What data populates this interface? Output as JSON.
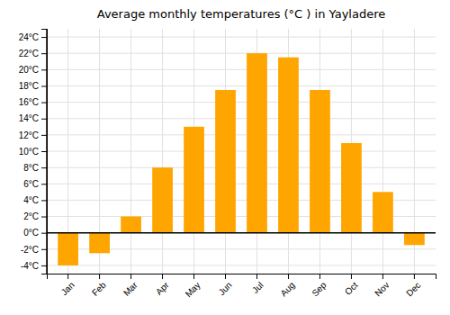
{
  "chart_data": {
    "type": "bar",
    "title": "Average monthly temperatures (°C ) in Yayladere",
    "categories": [
      "Jan",
      "Feb",
      "Mar",
      "Apr",
      "May",
      "Jun",
      "Jul",
      "Aug",
      "Sep",
      "Oct",
      "Nov",
      "Dec"
    ],
    "values": [
      -4.0,
      -2.5,
      2.0,
      8.0,
      13.0,
      17.5,
      22.0,
      21.5,
      17.5,
      11.0,
      5.0,
      -1.5
    ],
    "color": "#FFA500",
    "ylim": [
      -5,
      25
    ],
    "yticks": [
      {
        "value": -4,
        "label": "-4°C"
      },
      {
        "value": -2,
        "label": "-2°C"
      },
      {
        "value": 0,
        "label": "0°C"
      },
      {
        "value": 2,
        "label": "2°C"
      },
      {
        "value": 4,
        "label": "4°C"
      },
      {
        "value": 6,
        "label": "6°C"
      },
      {
        "value": 8,
        "label": "8°C"
      },
      {
        "value": 10,
        "label": "10°C"
      },
      {
        "value": 12,
        "label": "12°C"
      },
      {
        "value": 14,
        "label": "14°C"
      },
      {
        "value": 16,
        "label": "16°C"
      },
      {
        "value": 18,
        "label": "18°C"
      },
      {
        "value": 20,
        "label": "20°C"
      },
      {
        "value": 22,
        "label": "22°C"
      },
      {
        "value": 24,
        "label": "24°C"
      }
    ],
    "grid": true
  }
}
